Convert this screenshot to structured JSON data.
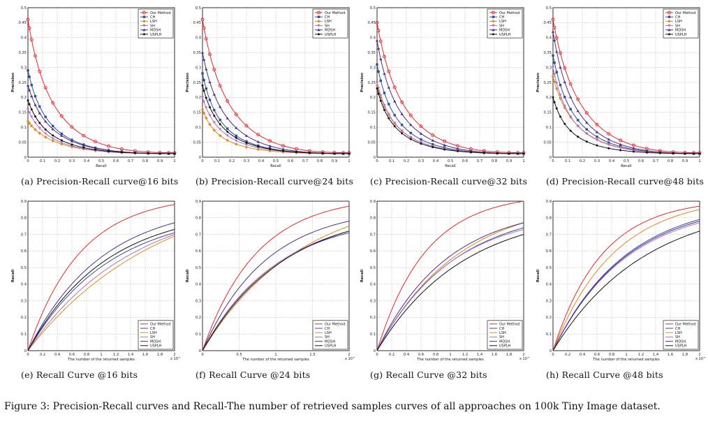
{
  "colors": {
    "Our Method": "#e8262a",
    "CH": "#2a4f9a",
    "LSH": "#e08a1e",
    "SH": "#b36fc6",
    "MDSH": "#4b2e8a",
    "USPLH": "#111111"
  },
  "caption": "Figure 3: Precision-Recall curves and Recall-The number of retrieved samples curves of all approaches on 100k Tiny Image dataset.",
  "chart_data": [
    {
      "id": "a",
      "type": "line",
      "subcaption": "(a)  Precision-Recall curve@16 bits",
      "xlabel": "Recall",
      "ylabel": "Precision",
      "xlim": [
        0,
        1
      ],
      "ylim": [
        0,
        0.5
      ],
      "xticks": [
        "0",
        "0.1",
        "0.2",
        "0.3",
        "0.4",
        "0.5",
        "0.6",
        "0.7",
        "0.8",
        "0.9",
        "1"
      ],
      "yticks": [
        "0",
        "0.05",
        "0.1",
        "0.15",
        "0.2",
        "0.25",
        "0.3",
        "0.35",
        "0.4",
        "0.45",
        "0.5"
      ],
      "legend_position": "top-right",
      "markers": true,
      "series": [
        {
          "name": "Our Method",
          "start": 0.46,
          "end": 0.015,
          "shape": 0.22
        },
        {
          "name": "CH",
          "start": 0.29,
          "end": 0.012,
          "shape": 0.17
        },
        {
          "name": "LSH",
          "start": 0.12,
          "end": 0.012,
          "shape": 0.25
        },
        {
          "name": "SH",
          "start": 0.16,
          "end": 0.012,
          "shape": 0.18
        },
        {
          "name": "MDSH",
          "start": 0.24,
          "end": 0.012,
          "shape": 0.2
        },
        {
          "name": "USPLH",
          "start": 0.19,
          "end": 0.012,
          "shape": 0.18
        }
      ]
    },
    {
      "id": "b",
      "type": "line",
      "subcaption": "(b)  Precision-Recall curve@24 bits",
      "xlabel": "Recall",
      "ylabel": "Precision",
      "xlim": [
        0,
        1
      ],
      "ylim": [
        0,
        0.5
      ],
      "xticks": [
        "0",
        "0.1",
        "0.2",
        "0.3",
        "0.4",
        "0.5",
        "0.6",
        "0.7",
        "0.8",
        "0.9",
        "1"
      ],
      "yticks": [
        "0",
        "0.05",
        "0.1",
        "0.15",
        "0.2",
        "0.25",
        "0.3",
        "0.35",
        "0.4",
        "0.45",
        "0.5"
      ],
      "legend_position": "top-right",
      "markers": true,
      "series": [
        {
          "name": "Our Method",
          "start": 0.46,
          "end": 0.015,
          "shape": 0.24
        },
        {
          "name": "CH",
          "start": 0.28,
          "end": 0.012,
          "shape": 0.15
        },
        {
          "name": "LSH",
          "start": 0.16,
          "end": 0.012,
          "shape": 0.14
        },
        {
          "name": "SH",
          "start": 0.2,
          "end": 0.012,
          "shape": 0.16
        },
        {
          "name": "MDSH",
          "start": 0.35,
          "end": 0.012,
          "shape": 0.19
        },
        {
          "name": "USPLH",
          "start": 0.24,
          "end": 0.012,
          "shape": 0.16
        }
      ]
    },
    {
      "id": "c",
      "type": "line",
      "subcaption": "(c)  Precision-Recall curve@32 bits",
      "xlabel": "Recall",
      "ylabel": "Precision",
      "xlim": [
        0,
        1
      ],
      "ylim": [
        0,
        0.5
      ],
      "xticks": [
        "0",
        "0.1",
        "0.2",
        "0.3",
        "0.4",
        "0.5",
        "0.6",
        "0.7",
        "0.8",
        "0.9",
        "1"
      ],
      "yticks": [
        "0",
        "0.05",
        "0.1",
        "0.15",
        "0.2",
        "0.25",
        "0.3",
        "0.35",
        "0.4",
        "0.45",
        "0.5"
      ],
      "legend_position": "top-right",
      "markers": true,
      "series": [
        {
          "name": "Our Method",
          "start": 0.45,
          "end": 0.015,
          "shape": 0.24
        },
        {
          "name": "CH",
          "start": 0.31,
          "end": 0.012,
          "shape": 0.16
        },
        {
          "name": "LSH",
          "start": 0.24,
          "end": 0.012,
          "shape": 0.17
        },
        {
          "name": "SH",
          "start": 0.25,
          "end": 0.012,
          "shape": 0.16
        },
        {
          "name": "MDSH",
          "start": 0.39,
          "end": 0.012,
          "shape": 0.19
        },
        {
          "name": "USPLH",
          "start": 0.23,
          "end": 0.012,
          "shape": 0.15
        }
      ]
    },
    {
      "id": "d",
      "type": "line",
      "subcaption": "(d)  Precision-Recall curve@48 bits",
      "xlabel": "Recall",
      "ylabel": "Precision",
      "xlim": [
        0,
        1
      ],
      "ylim": [
        0,
        0.5
      ],
      "xticks": [
        "0",
        "0.1",
        "0.2",
        "0.3",
        "0.4",
        "0.5",
        "0.6",
        "0.7",
        "0.8",
        "0.9",
        "1"
      ],
      "yticks": [
        "0",
        "0.05",
        "0.1",
        "0.15",
        "0.2",
        "0.25",
        "0.3",
        "0.35",
        "0.4",
        "0.45",
        "0.5"
      ],
      "legend_position": "top-right",
      "markers": true,
      "series": [
        {
          "name": "Our Method",
          "start": 0.46,
          "end": 0.015,
          "shape": 0.26
        },
        {
          "name": "CH",
          "start": 0.34,
          "end": 0.012,
          "shape": 0.18
        },
        {
          "name": "LSH",
          "start": 0.27,
          "end": 0.012,
          "shape": 0.2
        },
        {
          "name": "SH",
          "start": 0.3,
          "end": 0.012,
          "shape": 0.16
        },
        {
          "name": "MDSH",
          "start": 0.42,
          "end": 0.012,
          "shape": 0.19
        },
        {
          "name": "USPLH",
          "start": 0.2,
          "end": 0.012,
          "shape": 0.14
        }
      ]
    },
    {
      "id": "e",
      "type": "line",
      "subcaption": "(e)  Recall Curve @16 bits",
      "xlabel": "The number of the returned samples",
      "ylabel": "Recall",
      "xlim": [
        0,
        2
      ],
      "ylim": [
        0,
        0.9
      ],
      "xexp": "x 10^4",
      "xticks": [
        "0",
        "0.2",
        "0.4",
        "0.6",
        "0.8",
        "1",
        "1.2",
        "1.4",
        "1.6",
        "1.8",
        "2"
      ],
      "yticks": [
        "0",
        "0.1",
        "0.2",
        "0.3",
        "0.4",
        "0.5",
        "0.6",
        "0.7",
        "0.8",
        "0.9"
      ],
      "legend_position": "bottom-right",
      "markers": false,
      "series": [
        {
          "name": "Our Method",
          "end": 0.88,
          "rate": 1.4
        },
        {
          "name": "CH",
          "end": 0.71,
          "rate": 0.9
        },
        {
          "name": "LSH",
          "end": 0.69,
          "rate": 0.55
        },
        {
          "name": "SH",
          "end": 0.7,
          "rate": 0.7
        },
        {
          "name": "MDSH",
          "end": 0.77,
          "rate": 1.0
        },
        {
          "name": "USPLH",
          "end": 0.73,
          "rate": 0.95
        }
      ]
    },
    {
      "id": "f",
      "type": "line",
      "subcaption": "(f)  Recall Curve @24 bits",
      "xlabel": "The number of the returned samples",
      "ylabel": "Recall",
      "xlim": [
        0,
        2
      ],
      "ylim": [
        0,
        0.9
      ],
      "xexp": "x 10^4",
      "xticks": [
        "0",
        "0.5",
        "1",
        "1.5",
        "2"
      ],
      "yticks": [
        "0",
        "0.1",
        "0.2",
        "0.3",
        "0.4",
        "0.5",
        "0.6",
        "0.7",
        "0.8",
        "0.9"
      ],
      "legend_position": "bottom-right",
      "markers": false,
      "series": [
        {
          "name": "Our Method",
          "end": 0.87,
          "rate": 1.35
        },
        {
          "name": "CH",
          "end": 0.71,
          "rate": 1.0
        },
        {
          "name": "LSH",
          "end": 0.75,
          "rate": 0.75
        },
        {
          "name": "SH",
          "end": 0.72,
          "rate": 0.95
        },
        {
          "name": "MDSH",
          "end": 0.78,
          "rate": 1.15
        },
        {
          "name": "USPLH",
          "end": 0.72,
          "rate": 0.9
        }
      ]
    },
    {
      "id": "g",
      "type": "line",
      "subcaption": "(g)  Recall Curve @32 bits",
      "xlabel": "The number of the returned samples",
      "ylabel": "Recall",
      "xlim": [
        0,
        2
      ],
      "ylim": [
        0,
        0.9
      ],
      "xexp": "x 10^4",
      "xticks": [
        "0",
        "0.2",
        "0.4",
        "0.6",
        "0.8",
        "1",
        "1.2",
        "1.4",
        "1.6",
        "1.8",
        "2"
      ],
      "yticks": [
        "0",
        "0.1",
        "0.2",
        "0.3",
        "0.4",
        "0.5",
        "0.6",
        "0.7",
        "0.8",
        "0.9"
      ],
      "legend_position": "bottom-right",
      "markers": false,
      "series": [
        {
          "name": "Our Method",
          "end": 0.9,
          "rate": 1.5
        },
        {
          "name": "CH",
          "end": 0.74,
          "rate": 0.95
        },
        {
          "name": "LSH",
          "end": 0.77,
          "rate": 0.9
        },
        {
          "name": "SH",
          "end": 0.73,
          "rate": 1.0
        },
        {
          "name": "MDSH",
          "end": 0.77,
          "rate": 1.05
        },
        {
          "name": "USPLH",
          "end": 0.7,
          "rate": 0.85
        }
      ]
    },
    {
      "id": "h",
      "type": "line",
      "subcaption": "(h)  Recall Curve @48 bits",
      "xlabel": "The number of the returned samples",
      "ylabel": "Recall",
      "xlim": [
        0,
        2
      ],
      "ylim": [
        0,
        0.9
      ],
      "xexp": "x 10^4",
      "xticks": [
        "0",
        "0.2",
        "0.4",
        "0.6",
        "0.8",
        "1",
        "1.2",
        "1.4",
        "1.6",
        "1.8",
        "2"
      ],
      "yticks": [
        "0",
        "0.1",
        "0.2",
        "0.3",
        "0.4",
        "0.5",
        "0.6",
        "0.7",
        "0.8",
        "0.9"
      ],
      "legend_position": "bottom-right",
      "markers": false,
      "series": [
        {
          "name": "Our Method",
          "end": 0.87,
          "rate": 1.5
        },
        {
          "name": "CH",
          "end": 0.79,
          "rate": 1.0
        },
        {
          "name": "LSH",
          "end": 0.85,
          "rate": 1.2
        },
        {
          "name": "SH",
          "end": 0.77,
          "rate": 1.0
        },
        {
          "name": "MDSH",
          "end": 0.78,
          "rate": 1.0
        },
        {
          "name": "USPLH",
          "end": 0.72,
          "rate": 0.8
        }
      ]
    }
  ]
}
